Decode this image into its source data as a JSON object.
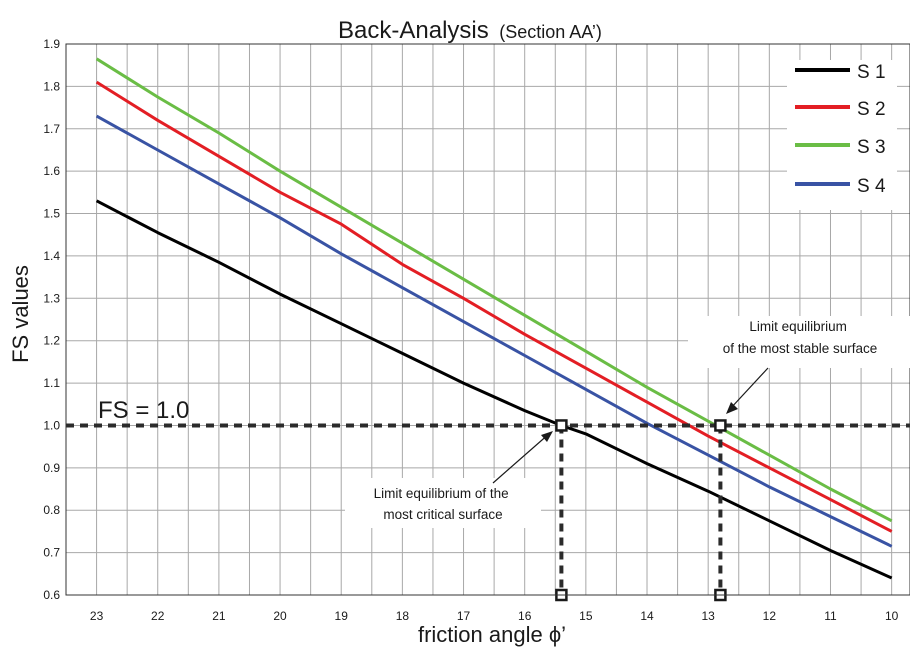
{
  "chart_data": {
    "type": "line",
    "title": "Back-Analysis",
    "subtitle": "(Section AA’)",
    "xlabel": "friction angle ϕ’",
    "ylabel": "FS values",
    "x_reversed": true,
    "xlim": [
      23.5,
      9.7
    ],
    "ylim": [
      0.6,
      1.9
    ],
    "grid": true,
    "legend_position": "top-right",
    "x_ticks": [
      23,
      22,
      21,
      20,
      19,
      18,
      17,
      16,
      15,
      14,
      13,
      12,
      11,
      10
    ],
    "y_ticks": [
      0.6,
      0.7,
      0.8,
      0.9,
      1.0,
      1.1,
      1.2,
      1.3,
      1.4,
      1.5,
      1.6,
      1.7,
      1.8,
      1.9
    ],
    "y_tick_labels": [
      "0.6",
      "0.7",
      "0.8",
      "0.9",
      "1.0",
      "1.1",
      "1.2",
      "1.3",
      "1.4",
      "1.5",
      "1.6",
      "1.7",
      "1.8",
      "1.9"
    ],
    "series": [
      {
        "name": "S 1",
        "color": "#000000",
        "x": [
          23,
          22,
          21,
          20,
          19,
          18,
          17,
          16,
          15.4,
          15,
          14,
          13,
          12,
          11,
          10
        ],
        "values": [
          1.53,
          1.455,
          1.385,
          1.31,
          1.24,
          1.17,
          1.1,
          1.035,
          1.0,
          0.98,
          0.91,
          0.845,
          0.775,
          0.705,
          0.64
        ]
      },
      {
        "name": "S 2",
        "color": "#e31e24",
        "x": [
          23,
          22,
          21,
          20,
          19,
          18,
          17,
          16,
          15,
          14,
          13,
          12,
          11,
          10
        ],
        "values": [
          1.81,
          1.72,
          1.635,
          1.55,
          1.475,
          1.38,
          1.3,
          1.215,
          1.135,
          1.055,
          0.975,
          0.9,
          0.825,
          0.75
        ]
      },
      {
        "name": "S 3",
        "color": "#6abd45",
        "x": [
          23,
          22,
          21,
          20,
          19,
          18,
          17,
          16,
          15,
          14,
          13,
          12,
          11,
          10
        ],
        "values": [
          1.865,
          1.775,
          1.69,
          1.6,
          1.515,
          1.43,
          1.345,
          1.26,
          1.175,
          1.09,
          1.01,
          0.93,
          0.85,
          0.775
        ]
      },
      {
        "name": "S 4",
        "color": "#3953a4",
        "x": [
          23,
          22,
          21,
          20,
          19,
          18,
          17,
          16,
          15,
          14,
          13,
          12,
          11,
          10
        ],
        "values": [
          1.73,
          1.65,
          1.57,
          1.49,
          1.405,
          1.325,
          1.245,
          1.165,
          1.085,
          1.005,
          0.93,
          0.855,
          0.785,
          0.715
        ]
      }
    ],
    "reference_line": {
      "y": 1.0,
      "label": "FS = 1.0"
    },
    "markers": [
      {
        "x": 15.4,
        "y": 1.0
      },
      {
        "x": 15.4,
        "y": 0.6
      },
      {
        "x": 12.8,
        "y": 1.0
      },
      {
        "x": 12.8,
        "y": 0.6
      }
    ],
    "annotations": [
      {
        "lines": [
          "Limit equilibrium of the",
          "most critical surface"
        ],
        "points_to": {
          "x": 15.4,
          "y": 1.0
        }
      },
      {
        "lines": [
          "Limit equilibrium",
          "of the most stable surface"
        ],
        "points_to": {
          "x": 12.8,
          "y": 1.0
        }
      }
    ]
  }
}
